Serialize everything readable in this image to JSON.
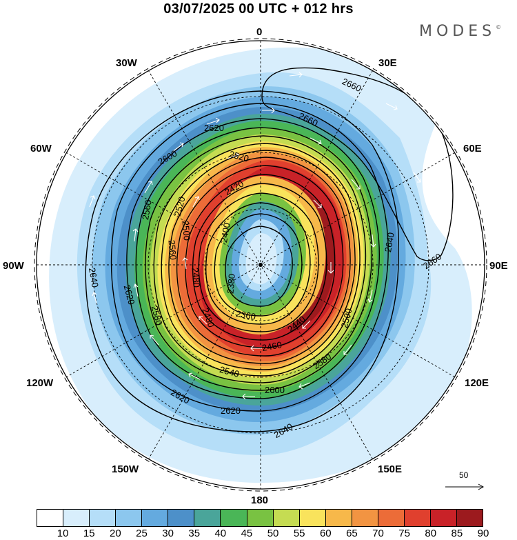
{
  "title": "03/07/2025  00 UTC  + 012 hrs",
  "brand": "MODES",
  "brand_mark": "©",
  "longitude_labels": {
    "lon_0": "0",
    "lon_30E": "30E",
    "lon_60E": "60E",
    "lon_90E": "90E",
    "lon_120E": "120E",
    "lon_150E": "150E",
    "lon_180": "180",
    "lon_150W": "150W",
    "lon_120W": "120W",
    "lon_90W": "90W",
    "lon_60W": "60W",
    "lon_30W": "30W"
  },
  "contours": [
    {
      "label": "2660"
    },
    {
      "label": "2660"
    },
    {
      "label": "2660"
    },
    {
      "label": "2640"
    },
    {
      "label": "2640"
    },
    {
      "label": "2640"
    },
    {
      "label": "2620"
    },
    {
      "label": "2620"
    },
    {
      "label": "2620"
    },
    {
      "label": "2620"
    },
    {
      "label": "2600"
    },
    {
      "label": "2600"
    },
    {
      "label": "2580"
    },
    {
      "label": "2580"
    },
    {
      "label": "2560"
    },
    {
      "label": "2560"
    },
    {
      "label": "2540"
    },
    {
      "label": "2520"
    },
    {
      "label": "2520"
    },
    {
      "label": "2500"
    },
    {
      "label": "2500"
    },
    {
      "label": "2480"
    },
    {
      "label": "2480"
    },
    {
      "label": "2460"
    },
    {
      "label": "2440"
    },
    {
      "label": "2420"
    },
    {
      "label": "2400"
    },
    {
      "label": "2380"
    },
    {
      "label": "2360"
    }
  ],
  "wind_scale": {
    "label": "50",
    "units": "reference vector"
  },
  "colorbar": {
    "labels": [
      "10",
      "15",
      "20",
      "25",
      "30",
      "35",
      "40",
      "45",
      "50",
      "55",
      "60",
      "65",
      "70",
      "75",
      "80",
      "85",
      "90"
    ],
    "colors": [
      "#ffffff",
      "#d8eefc",
      "#b5def8",
      "#8cc7ee",
      "#64aadf",
      "#4d90c9",
      "#4aa59a",
      "#4ab657",
      "#79c242",
      "#c5dc52",
      "#f9e35c",
      "#f7b84a",
      "#f29442",
      "#ec6c38",
      "#e0402e",
      "#c92228",
      "#9c1a1e"
    ]
  },
  "shading_colors": {
    "c15": "#d8eefc",
    "c20": "#b5def8",
    "c25": "#8cc7ee",
    "c30": "#64aadf",
    "c35": "#4d90c9",
    "c40": "#4aa59a",
    "c45": "#4ab657",
    "c50": "#79c242",
    "c55": "#c5dc52",
    "c60": "#f9e35c",
    "c65": "#f7b84a",
    "c70": "#f29442",
    "c75": "#ec6c38",
    "c80": "#e0402e",
    "c85": "#c92228",
    "c90": "#9c1a1e",
    "land": "#eeeeee"
  }
}
